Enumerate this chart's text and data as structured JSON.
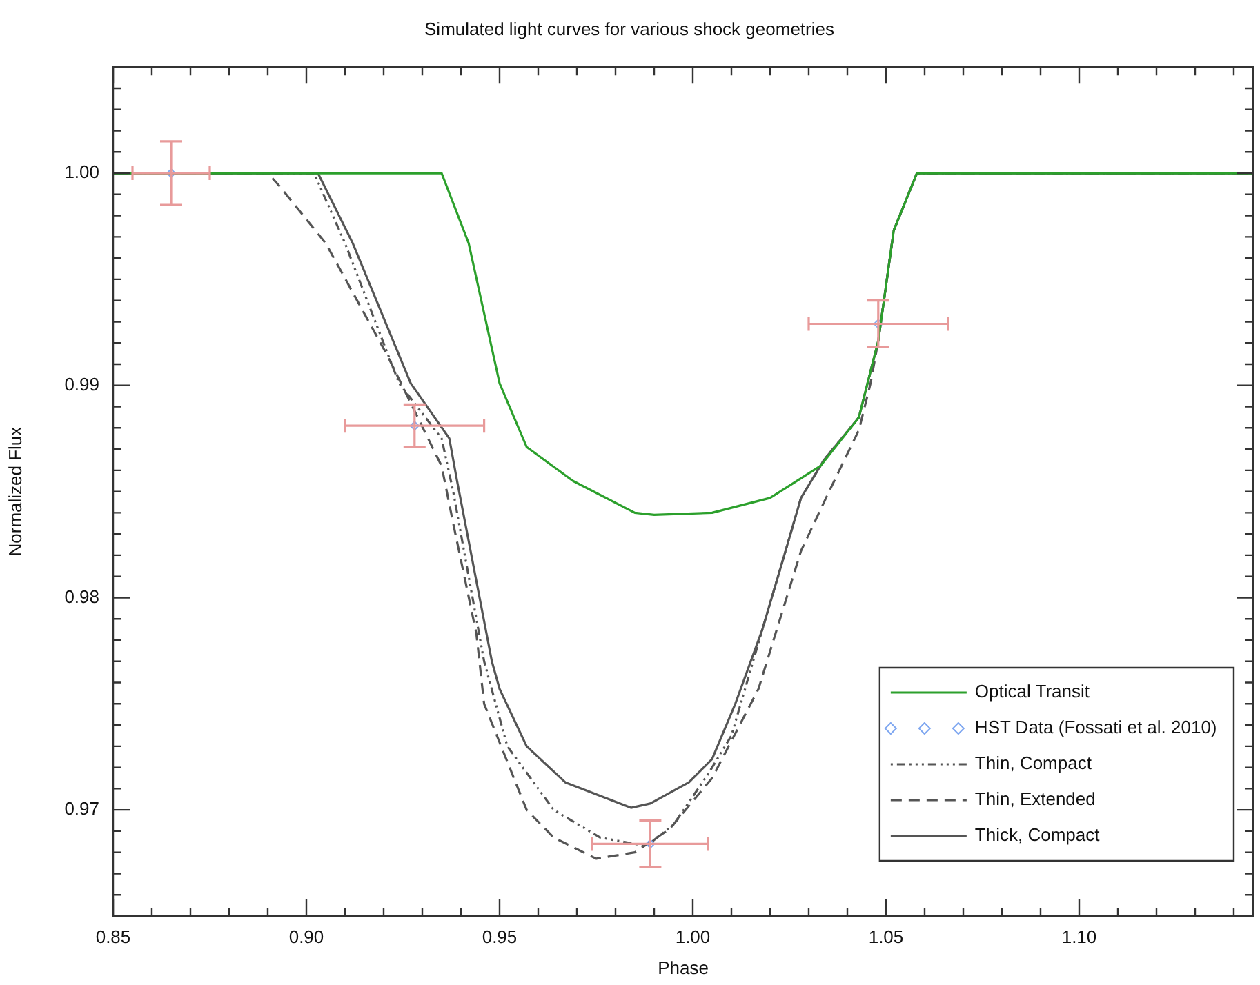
{
  "chart_data": {
    "type": "line",
    "title": "Simulated light curves for various shock geometries",
    "xlabel": "Phase",
    "ylabel": "Normalized Flux",
    "xlim": [
      0.85,
      1.145
    ],
    "ylim": [
      0.965,
      1.005
    ],
    "xticks": [
      0.85,
      {
        "value": 0.86,
        "label": null
      },
      {
        "value": 0.87,
        "label": null
      },
      {
        "value": 0.88,
        "label": null
      },
      {
        "value": 0.89,
        "label": null
      },
      {
        "value": 0.9,
        "label": "0.90"
      },
      {
        "value": 0.91,
        "label": null
      },
      {
        "value": 0.92,
        "label": null
      },
      {
        "value": 0.93,
        "label": null
      },
      {
        "value": 0.94,
        "label": null
      },
      0.95,
      {
        "value": 0.96,
        "label": null
      },
      {
        "value": 0.97,
        "label": null
      },
      {
        "value": 0.98,
        "label": null
      },
      {
        "value": 0.99,
        "label": null
      },
      {
        "value": 1,
        "label": "1.00"
      },
      {
        "value": 1.01,
        "label": null
      },
      {
        "value": 1.02,
        "label": null
      },
      {
        "value": 1.03,
        "label": null
      },
      {
        "value": 1.04,
        "label": null
      },
      1.05,
      {
        "value": 1.06,
        "label": null
      },
      {
        "value": 1.07,
        "label": null
      },
      {
        "value": 1.08,
        "label": null
      },
      {
        "value": 1.09,
        "label": null
      },
      {
        "value": 1.1,
        "label": "1.10"
      },
      {
        "value": 1.11,
        "label": null
      },
      {
        "value": 1.12,
        "label": null
      },
      {
        "value": 1.13,
        "label": null
      },
      {
        "value": 1.14,
        "label": null
      }
    ],
    "yticks": [
      {
        "value": 0.966,
        "label": null
      },
      {
        "value": 0.967,
        "label": null
      },
      {
        "value": 0.968,
        "label": null
      },
      {
        "value": 0.969,
        "label": null
      },
      0.97,
      {
        "value": 0.971,
        "label": null
      },
      {
        "value": 0.972,
        "label": null
      },
      {
        "value": 0.973,
        "label": null
      },
      {
        "value": 0.974,
        "label": null
      },
      {
        "value": 0.975,
        "label": null
      },
      {
        "value": 0.976,
        "label": null
      },
      {
        "value": 0.977,
        "label": null
      },
      {
        "value": 0.978,
        "label": null
      },
      {
        "value": 0.979,
        "label": null
      },
      0.98,
      {
        "value": 0.981,
        "label": null
      },
      {
        "value": 0.982,
        "label": null
      },
      {
        "value": 0.983,
        "label": null
      },
      {
        "value": 0.984,
        "label": null
      },
      {
        "value": 0.985,
        "label": null
      },
      {
        "value": 0.986,
        "label": null
      },
      {
        "value": 0.987,
        "label": null
      },
      {
        "value": 0.988,
        "label": null
      },
      {
        "value": 0.989,
        "label": null
      },
      0.99,
      {
        "value": 0.991,
        "label": null
      },
      {
        "value": 0.992,
        "label": null
      },
      {
        "value": 0.993,
        "label": null
      },
      {
        "value": 0.994,
        "label": null
      },
      {
        "value": 0.995,
        "label": null
      },
      {
        "value": 0.996,
        "label": null
      },
      {
        "value": 0.997,
        "label": null
      },
      {
        "value": 0.998,
        "label": null
      },
      {
        "value": 0.999,
        "label": null
      },
      {
        "value": 1,
        "label": "1.00"
      },
      {
        "value": 1.001,
        "label": null
      },
      {
        "value": 1.002,
        "label": null
      },
      {
        "value": 1.003,
        "label": null
      },
      {
        "value": 1.004,
        "label": null
      }
    ],
    "grid": false,
    "legend": "bottom right",
    "series": [
      {
        "name": "Optical Transit",
        "color": "#2ca02c",
        "line_style": "solid",
        "marker": "none",
        "x": [
          0.85,
          0.935,
          0.942,
          0.95,
          0.957,
          0.969,
          0.985,
          0.99,
          1.005,
          1.02,
          1.033,
          1.043,
          1.048,
          1.052,
          1.058,
          1.145
        ],
        "values": [
          1.0,
          1.0,
          0.9967,
          0.9901,
          0.9871,
          0.9855,
          0.984,
          0.9839,
          0.984,
          0.9847,
          0.9862,
          0.9885,
          0.9921,
          0.9973,
          1.0,
          1.0
        ]
      },
      {
        "name": "HST Data (Fossati et al. 2010)",
        "type": "scatter",
        "color": "#7fa7f0",
        "marker": "diamond",
        "x": [
          0.865,
          0.928,
          0.989,
          1.048
        ],
        "values": [
          1.0,
          0.9881,
          0.9684,
          0.9929
        ],
        "errors": [
          0.0015,
          0.001,
          0.0011,
          0.0011
        ],
        "xerrors": [
          0.01,
          0.018,
          0.015,
          0.018
        ]
      },
      {
        "name": "Thin, Compact",
        "color": "#555555",
        "line_style": "dotted",
        "marker": "none",
        "x": [
          0.85,
          0.902,
          0.91,
          0.924,
          0.935,
          0.938,
          0.946,
          0.952,
          0.964,
          0.976,
          0.988,
          0.995,
          1.004,
          1.01,
          1.018,
          1.024,
          1.028,
          1.034,
          1.043,
          1.048,
          1.052,
          1.058,
          1.145
        ],
        "values": [
          1.0,
          1.0,
          0.9967,
          0.9901,
          0.9875,
          0.985,
          0.977,
          0.973,
          0.97,
          0.9687,
          0.9683,
          0.9693,
          0.9717,
          0.9735,
          0.9785,
          0.9822,
          0.9847,
          0.9865,
          0.9885,
          0.9921,
          0.9973,
          1.0,
          1.0
        ]
      },
      {
        "name": "Thin, Extended",
        "color": "#555555",
        "line_style": "dashed",
        "marker": "none",
        "x": [
          0.85,
          0.89,
          0.893,
          0.905,
          0.921,
          0.928,
          0.935,
          0.938,
          0.944,
          0.946,
          0.957,
          0.964,
          0.975,
          0.985,
          0.994,
          1.005,
          1.017,
          1.028,
          1.035,
          1.043,
          1.046,
          1.048,
          1.052,
          1.058,
          1.145
        ],
        "values": [
          1.0,
          1.0,
          0.9994,
          0.9967,
          0.9914,
          0.9888,
          0.9862,
          0.9835,
          0.9783,
          0.975,
          0.97,
          0.9687,
          0.9677,
          0.968,
          0.9691,
          0.9715,
          0.9757,
          0.9822,
          0.9849,
          0.9879,
          0.9901,
          0.9921,
          0.9973,
          1.0,
          1.0
        ]
      },
      {
        "name": "Thick, Compact",
        "color": "#555555",
        "line_style": "solid",
        "marker": "none",
        "x": [
          0.85,
          0.903,
          0.912,
          0.927,
          0.937,
          0.939,
          0.948,
          0.95,
          0.957,
          0.967,
          0.984,
          0.989,
          0.999,
          1.005,
          1.011,
          1.018,
          1.024,
          1.028,
          1.034,
          1.043,
          1.048,
          1.052,
          1.058,
          1.145
        ],
        "values": [
          1.0,
          1.0,
          0.9967,
          0.9901,
          0.9875,
          0.9855,
          0.977,
          0.9757,
          0.973,
          0.9713,
          0.9701,
          0.9703,
          0.9713,
          0.9724,
          0.975,
          0.9785,
          0.9822,
          0.9847,
          0.9865,
          0.9885,
          0.9921,
          0.9973,
          1.0,
          1.0
        ]
      }
    ]
  }
}
